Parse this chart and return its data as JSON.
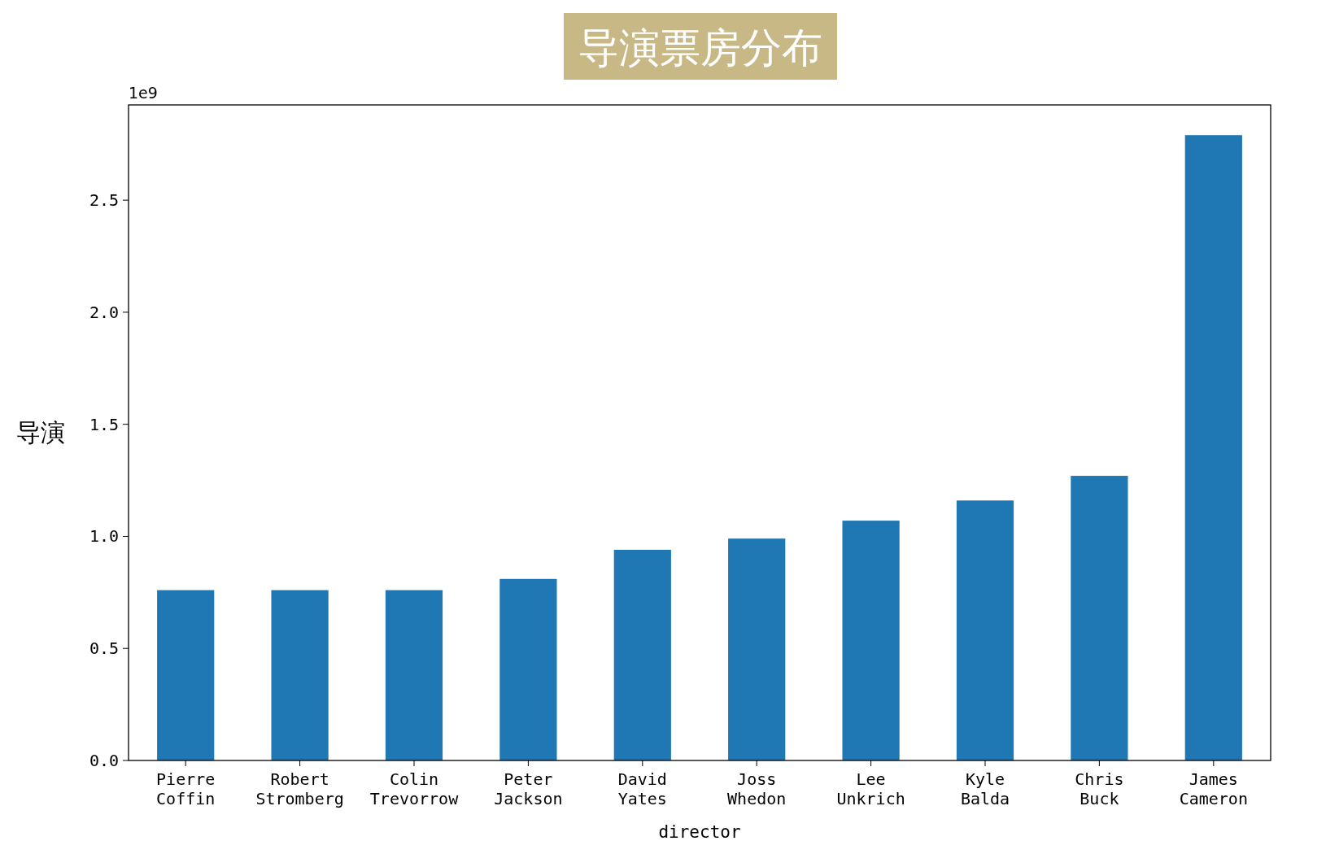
{
  "chart_data": {
    "type": "bar",
    "title": "导演票房分布",
    "xlabel": "director",
    "ylabel": "导演",
    "categories": [
      "Pierre Coffin",
      "Robert Stromberg",
      "Colin Trevorrow",
      "Peter Jackson",
      "David Yates",
      "Joss Whedon",
      "Lee Unkrich",
      "Kyle Balda",
      "Chris Buck",
      "James Cameron"
    ],
    "values": [
      0.76,
      0.76,
      0.76,
      0.81,
      0.94,
      0.99,
      1.07,
      1.16,
      1.27,
      2.79
    ],
    "color": "#1f77b4",
    "ylim": [
      0,
      2.925
    ],
    "yticks": [
      {
        "value": 0,
        "label": "0.0"
      },
      0.5,
      {
        "value": 1,
        "label": "1.0"
      },
      1.5,
      {
        "value": 2,
        "label": "2.0"
      },
      2.5
    ],
    "annotations": [
      "1e9"
    ]
  }
}
